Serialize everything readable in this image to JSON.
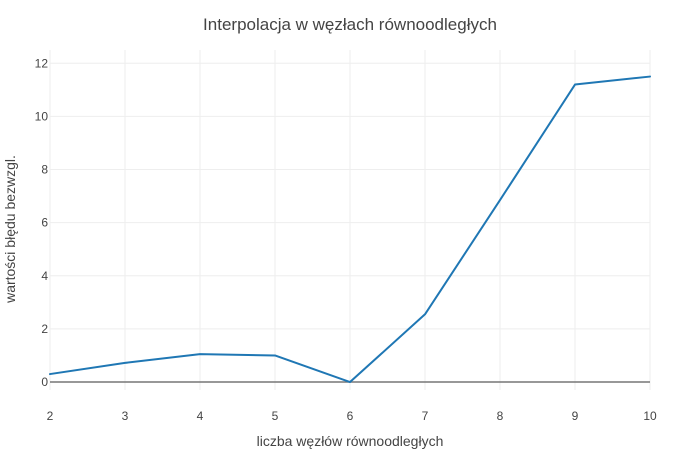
{
  "chart_data": {
    "type": "line",
    "title": "Interpolacja w węzłach równoodległych",
    "xlabel": "liczba węzłów równoodległych",
    "ylabel": "wartości błędu bezwzgl.",
    "x": [
      2,
      3,
      4,
      5,
      6,
      7,
      8,
      9,
      10
    ],
    "x_ticks": [
      "2",
      "3",
      "4",
      "5",
      "6",
      "7",
      "8",
      "9",
      "10"
    ],
    "y_ticks": [
      "0",
      "2",
      "4",
      "6",
      "8",
      "10",
      "12"
    ],
    "xlim": [
      2,
      10
    ],
    "ylim": [
      -0.3,
      12.5
    ],
    "grid": true,
    "series": [
      {
        "values": [
          0.3,
          0.72,
          1.05,
          1.0,
          0.0,
          2.55,
          6.85,
          11.2,
          11.5
        ],
        "color": "#1f77b4"
      }
    ]
  }
}
